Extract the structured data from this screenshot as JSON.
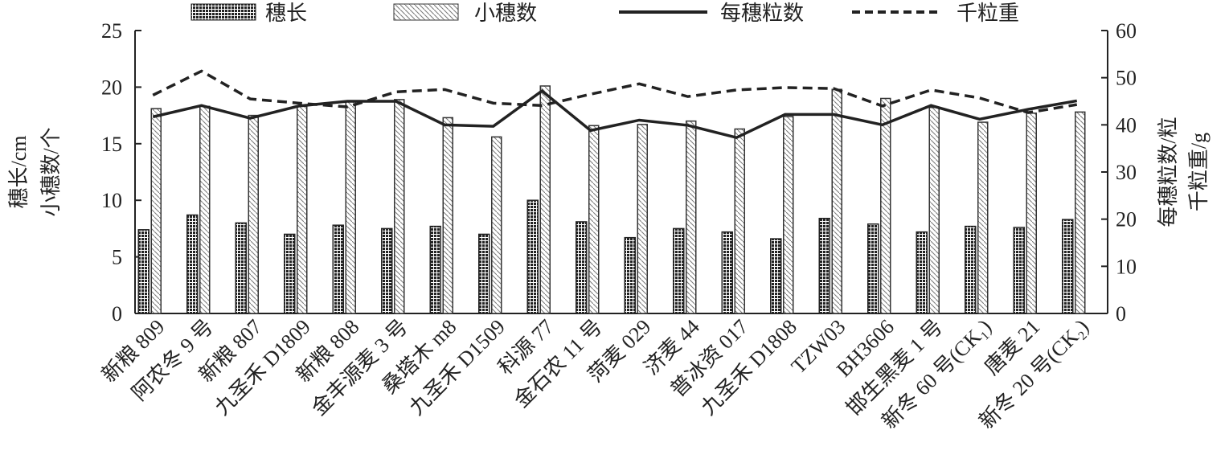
{
  "chart_data": {
    "type": "bar+line",
    "categories": [
      "新粮 809",
      "阿农冬 9 号",
      "新粮 807",
      "九圣禾 D1809",
      "新粮 808",
      "金丰源麦 3 号",
      "桑塔木 m8",
      "九圣禾 D1509",
      "科源 77",
      "金石农 11 号",
      "菏麦 029",
      "济麦 44",
      "普冰资 017",
      "九圣禾 D1808",
      "TZW03",
      "BH3606",
      "邯生黑麦 1 号",
      "新冬 60 号(CK₁)",
      "唐麦 21",
      "新冬 20 号(CK₂)"
    ],
    "series": [
      {
        "name": "穗长",
        "type": "bar",
        "axis": "left",
        "values": [
          7.4,
          8.7,
          8.0,
          7.0,
          7.8,
          7.5,
          7.7,
          7.0,
          10.0,
          8.1,
          6.7,
          7.5,
          7.2,
          6.6,
          8.4,
          7.9,
          7.2,
          7.7,
          7.6,
          8.3
        ]
      },
      {
        "name": "小穗数",
        "type": "bar",
        "axis": "left",
        "values": [
          18.1,
          18.3,
          17.5,
          18.3,
          18.7,
          18.9,
          17.3,
          15.6,
          20.1,
          16.6,
          16.7,
          17.0,
          16.3,
          17.4,
          19.8,
          19.0,
          18.2,
          16.9,
          17.7,
          17.8
        ]
      },
      {
        "name": "每穗粒数",
        "type": "line",
        "axis": "right",
        "values": [
          41.7,
          44.1,
          41.4,
          44.0,
          45.0,
          45.0,
          40.0,
          39.7,
          47.2,
          38.8,
          41.0,
          39.9,
          37.3,
          42.2,
          42.2,
          40.0,
          44.1,
          41.2,
          43.3,
          45.1
        ]
      },
      {
        "name": "千粒重",
        "type": "line-dashed",
        "axis": "right",
        "values": [
          46.3,
          51.4,
          45.5,
          44.6,
          43.8,
          47.0,
          47.5,
          44.6,
          44.1,
          46.5,
          48.7,
          46.0,
          47.4,
          47.9,
          47.7,
          44.0,
          47.4,
          45.7,
          42.6,
          44.3
        ]
      }
    ],
    "ylabel_left": [
      "穗长/cm",
      "小穗数/个"
    ],
    "ylabel_right": [
      "每穗粒数/粒",
      "千粒重/g"
    ],
    "ylim_left": [
      0,
      25
    ],
    "yticks_left": [
      0,
      5,
      10,
      15,
      20,
      25
    ],
    "ylim_right": [
      0,
      60
    ],
    "yticks_right": [
      0,
      10,
      20,
      30,
      40,
      50,
      60
    ],
    "legend_position": "top",
    "grid": false
  }
}
